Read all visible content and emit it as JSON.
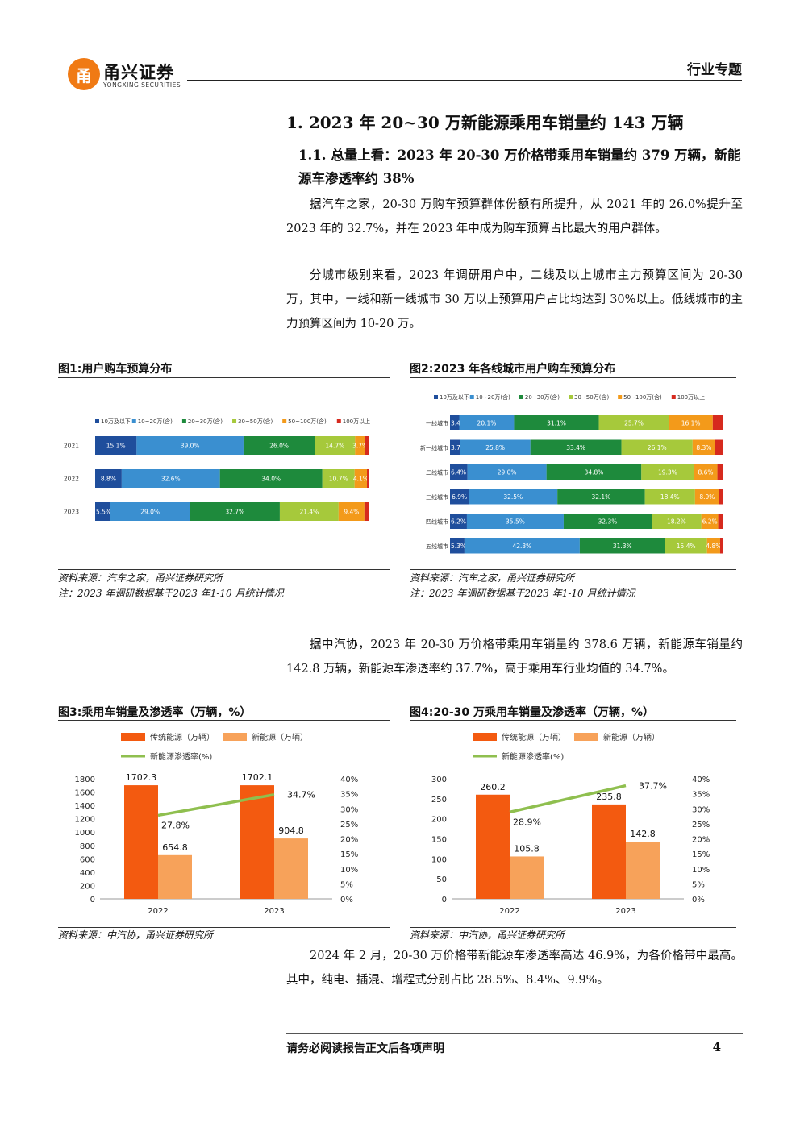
{
  "header": {
    "logo_mark": "甬",
    "logo_cn": "甬兴证券",
    "logo_en": "YONGXING SECURITIES",
    "section": "行业专题"
  },
  "h1": "1. 2023 年 20~30 万新能源乘用车销量约 143 万辆",
  "h2": "1.1. 总量上看：2023 年 20-30 万价格带乘用车销量约 379 万辆，新能源车渗透率约 38%",
  "paragraphs": {
    "p1": "据汽车之家，20-30 万购车预算群体份额有所提升，从 2021 年的 26.0%提升至 2023 年的 32.7%，并在 2023 年中成为购车预算占比最大的用户群体。",
    "p2": "分城市级别来看，2023 年调研用户中，二线及以上城市主力预算区间为 20-30 万，其中，一线和新一线城市 30 万以上预算用户占比均达到 30%以上。低线城市的主力预算区间为 10-20 万。",
    "p3": "据中汽协，2023 年 20-30 万价格带乘用车销量约 378.6 万辆，新能源车销量约 142.8 万辆，新能源车渗透率约 37.7%，高于乘用车行业均值的 34.7%。",
    "p4": "2024 年 2 月，20-30 万价格带新能源车渗透率高达 46.9%，为各价格带中最高。其中，纯电、插混、增程式分别占比 28.5%、8.4%、9.9%。"
  },
  "figures": {
    "fig1": {
      "title": "图1:用户购车预算分布",
      "source": "资料来源：汽车之家，甬兴证券研究所",
      "note": "注：2023 年调研数据基于2023 年1-10 月统计情况"
    },
    "fig2": {
      "title": "图2:2023 年各线城市用户购车预算分布",
      "source": "资料来源：汽车之家，甬兴证券研究所",
      "note": "注：2023 年调研数据基于2023 年1-10 月统计情况"
    },
    "fig3": {
      "title": "图3:乘用车销量及渗透率（万辆，%）",
      "source": "资料来源：中汽协，甬兴证券研究所"
    },
    "fig4": {
      "title": "图4:20-30 万乘用车销量及渗透率（万辆，%）",
      "source": "资料来源：中汽协，甬兴证券研究所"
    }
  },
  "colors": {
    "b1": "#1f4e9c",
    "b2": "#3a8fd0",
    "b3": "#1e8a3c",
    "b4": "#a6c93b",
    "b5": "#f39a1a",
    "b6": "#d62a1e",
    "trad": "#f35a10",
    "nev": "#f7a25a",
    "pen": "#8fbf4f"
  },
  "chart_data": [
    {
      "type": "bar",
      "orientation": "horizontal",
      "stacked": true,
      "legend": [
        "10万及以下",
        "10~20万(含)",
        "20~30万(含)",
        "30~50万(含)",
        "50~100万(含)",
        "100万以上"
      ],
      "categories": [
        "2021",
        "2022",
        "2023"
      ],
      "series": [
        {
          "name": "10万及以下",
          "values": [
            15.1,
            8.8,
            5.5
          ]
        },
        {
          "name": "10~20万(含)",
          "values": [
            39.0,
            32.6,
            29.0
          ]
        },
        {
          "name": "20~30万(含)",
          "values": [
            26.0,
            34.0,
            32.7
          ]
        },
        {
          "name": "30~50万(含)",
          "values": [
            14.7,
            10.7,
            21.4
          ]
        },
        {
          "name": "50~100万(含)",
          "values": [
            3.7,
            4.1,
            9.4
          ]
        },
        {
          "name": "100万以上",
          "values": [
            1.5,
            0.8,
            1.8
          ]
        }
      ],
      "labels": [
        [
          "15.1%",
          "39.0%",
          "26.0%",
          "14.7%",
          "3.7%",
          ""
        ],
        [
          "8.8%",
          "32.6%",
          "34.0%",
          "10.7%",
          "4.1%",
          ""
        ],
        [
          "5.5%",
          "29.0%",
          "32.7%",
          "21.4%",
          "9.4%",
          ""
        ]
      ]
    },
    {
      "type": "bar",
      "orientation": "horizontal",
      "stacked": true,
      "legend": [
        "10万及以下",
        "10~20万(含)",
        "20~30万(含)",
        "30~50万(含)",
        "50~100万(含)",
        "100万以上"
      ],
      "categories": [
        "一线城市",
        "新一线城市",
        "二线城市",
        "三线城市",
        "四线城市",
        "五线城市"
      ],
      "series": [
        {
          "name": "10万及以下",
          "values": [
            3.4,
            3.7,
            6.4,
            6.9,
            6.2,
            5.3
          ]
        },
        {
          "name": "10~20万(含)",
          "values": [
            20.1,
            25.8,
            29.0,
            32.5,
            35.5,
            42.3
          ]
        },
        {
          "name": "20~30万(含)",
          "values": [
            31.1,
            33.4,
            34.8,
            32.1,
            32.3,
            31.3
          ]
        },
        {
          "name": "30~50万(含)",
          "values": [
            25.7,
            26.1,
            19.3,
            18.4,
            18.2,
            15.4
          ]
        },
        {
          "name": "50~100万(含)",
          "values": [
            16.1,
            8.3,
            8.6,
            8.9,
            6.2,
            4.8
          ]
        },
        {
          "name": "100万以上",
          "values": [
            3.6,
            2.7,
            1.9,
            1.2,
            1.6,
            0.9
          ]
        }
      ],
      "labels": [
        [
          "3.4%",
          "20.1%",
          "31.1%",
          "25.7%",
          "16.1%",
          ""
        ],
        [
          "3.7%",
          "25.8%",
          "33.4%",
          "26.1%",
          "8.3%",
          ""
        ],
        [
          "6.4%",
          "29.0%",
          "34.8%",
          "19.3%",
          "8.6%",
          ""
        ],
        [
          "6.9%",
          "32.5%",
          "32.1%",
          "18.4%",
          "8.9%",
          ""
        ],
        [
          "6.2%",
          "35.5%",
          "32.3%",
          "18.2%",
          "6.2%",
          ""
        ],
        [
          "5.3%",
          "42.3%",
          "31.3%",
          "15.4%",
          "4.8%",
          ""
        ]
      ]
    },
    {
      "type": "bar",
      "combo": "line",
      "categories": [
        "2022",
        "2023"
      ],
      "series": [
        {
          "name": "传统能源（万辆）",
          "values": [
            1702.3,
            1702.1
          ],
          "labels": [
            "1702.3",
            "1702.1"
          ]
        },
        {
          "name": "新能源（万辆）",
          "values": [
            654.8,
            904.8
          ],
          "labels": [
            "654.8",
            "904.8"
          ]
        }
      ],
      "line": {
        "name": "新能源渗透率(%)",
        "values": [
          27.8,
          34.7
        ],
        "labels": [
          "27.8%",
          "34.7%"
        ]
      },
      "ylim": [
        0,
        1800
      ],
      "yticks": [
        "0",
        "200",
        "400",
        "600",
        "800",
        "1000",
        "1200",
        "1400",
        "1600",
        "1800"
      ],
      "y2lim": [
        0,
        40
      ],
      "y2ticks": [
        "0%",
        "5%",
        "10%",
        "15%",
        "20%",
        "25%",
        "30%",
        "35%",
        "40%"
      ]
    },
    {
      "type": "bar",
      "combo": "line",
      "categories": [
        "2022",
        "2023"
      ],
      "series": [
        {
          "name": "传统能源（万辆）",
          "values": [
            260.2,
            235.8
          ],
          "labels": [
            "260.2",
            "235.8"
          ]
        },
        {
          "name": "新能源（万辆）",
          "values": [
            105.8,
            142.8
          ],
          "labels": [
            "105.8",
            "142.8"
          ]
        }
      ],
      "line": {
        "name": "新能源渗透率(%)",
        "values": [
          28.9,
          37.7
        ],
        "labels": [
          "28.9%",
          "37.7%"
        ]
      },
      "ylim": [
        0,
        300
      ],
      "yticks": [
        "0",
        "50",
        "100",
        "150",
        "200",
        "250",
        "300"
      ],
      "y2lim": [
        0,
        40
      ],
      "y2ticks": [
        "0%",
        "5%",
        "10%",
        "15%",
        "20%",
        "25%",
        "30%",
        "35%",
        "40%"
      ]
    }
  ]
}
